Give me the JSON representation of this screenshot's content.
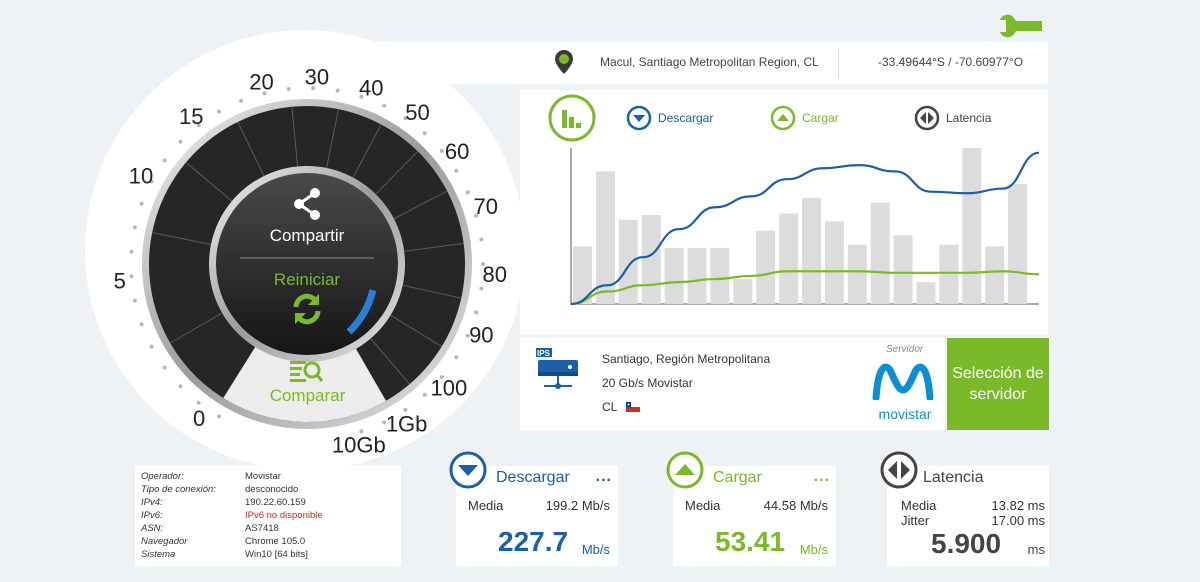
{
  "location": {
    "place": "Macul, Santiago Metropolitan Region, CL",
    "coords": "-33.49644°S / -70.60977°O"
  },
  "gauge": {
    "scale": [
      "0",
      "5",
      "10",
      "15",
      "20",
      "30",
      "40",
      "50",
      "60",
      "70",
      "80",
      "90",
      "100",
      "1Gb",
      "10Gb"
    ],
    "share_label": "Compartir",
    "restart_label": "Reiniciar",
    "compare_label": "Comparar"
  },
  "legend": {
    "download": "Descargar",
    "upload": "Cargar",
    "latency": "Latencia"
  },
  "chart_data": {
    "type": "bar",
    "bars": [
      0.37,
      0.85,
      0.54,
      0.57,
      0.36,
      0.36,
      0.36,
      0.16,
      0.47,
      0.58,
      0.68,
      0.53,
      0.38,
      0.65,
      0.44,
      0.14,
      0.38,
      1.0,
      0.37,
      0.77
    ],
    "download_series": [
      0.0,
      0.12,
      0.3,
      0.48,
      0.62,
      0.69,
      0.8,
      0.87,
      0.89,
      0.85,
      0.72,
      0.71,
      0.74,
      0.97
    ],
    "upload_series": [
      0.0,
      0.08,
      0.12,
      0.14,
      0.16,
      0.18,
      0.21,
      0.21,
      0.21,
      0.2,
      0.2,
      0.2,
      0.21,
      0.19
    ],
    "grid": false
  },
  "server": {
    "ips_label": "IPS",
    "city": "Santiago, Región Metropolitana",
    "isp": "20 Gb/s Movistar",
    "country": "CL",
    "label": "Servidor",
    "brand": "movistar",
    "select_button": "Selección de servidor"
  },
  "info": [
    {
      "key": "Operador:",
      "value": "Movistar",
      "highlight": false
    },
    {
      "key": "Tipo de conexión:",
      "value": "desconocido",
      "highlight": false
    },
    {
      "key": "IPv4:",
      "value": "190.22.60.159",
      "highlight": false
    },
    {
      "key": "IPv6:",
      "value": "IPv6 no disponible",
      "highlight": true
    },
    {
      "key": "ASN:",
      "value": "AS7418",
      "highlight": false
    },
    {
      "key": "Navegador",
      "value": "Chrome 105.0",
      "highlight": false
    },
    {
      "key": "Sistema",
      "value": "Win10 [64 bits]",
      "highlight": false
    }
  ],
  "results": {
    "download": {
      "title": "Descargar",
      "more": "...",
      "avg_label": "Media",
      "avg_value": "199.2 Mb/s",
      "value": "227.7",
      "unit": "Mb/s"
    },
    "upload": {
      "title": "Cargar",
      "more": "...",
      "avg_label": "Media",
      "avg_value": "44.58 Mb/s",
      "value": "53.41",
      "unit": "Mb/s"
    },
    "latency": {
      "title": "Latencia",
      "avg_label": "Media",
      "avg_value": "13.82 ms",
      "jitter_label": "Jitter",
      "jitter_value": "17.00 ms",
      "value": "5.900",
      "unit": "ms"
    }
  },
  "colors": {
    "download": "#1c5ea8",
    "upload": "#7ab928",
    "latency": "#444444",
    "bars": "#dcdcdc"
  }
}
